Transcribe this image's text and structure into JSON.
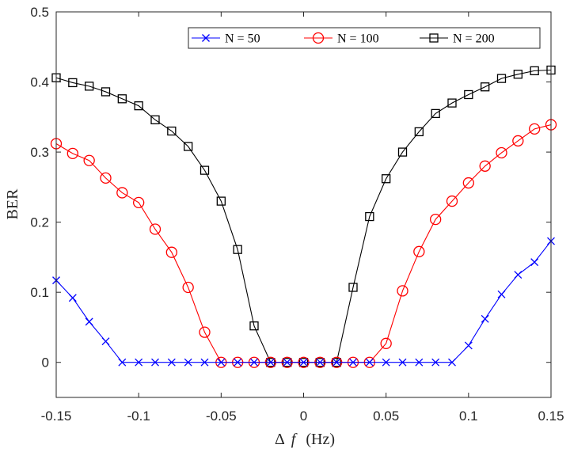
{
  "chart_data": {
    "type": "line",
    "title": "",
    "xlabel_symbol": "Δ",
    "xlabel_var": "f",
    "xlabel_unit": "(Hz)",
    "ylabel": "BER",
    "xlim": [
      -0.15,
      0.15
    ],
    "ylim": [
      -0.05,
      0.5
    ],
    "xticks": [
      -0.15,
      -0.1,
      -0.05,
      0,
      0.05,
      0.1,
      0.15
    ],
    "xtick_labels": [
      "-0.15",
      "-0.1",
      "-0.05",
      "0",
      "0.05",
      "0.1",
      "0.15"
    ],
    "yticks": [
      0,
      0.1,
      0.2,
      0.3,
      0.4,
      0.5
    ],
    "ytick_labels": [
      "0",
      "0.1",
      "0.2",
      "0.3",
      "0.4",
      "0.5"
    ],
    "grid": false,
    "legend_position": "top-right",
    "x": [
      -0.15,
      -0.14,
      -0.13,
      -0.12,
      -0.11,
      -0.1,
      -0.09,
      -0.08,
      -0.07,
      -0.06,
      -0.05,
      -0.04,
      -0.03,
      -0.02,
      -0.01,
      0,
      0.01,
      0.02,
      0.03,
      0.04,
      0.05,
      0.06,
      0.07,
      0.08,
      0.09,
      0.1,
      0.11,
      0.12,
      0.13,
      0.14,
      0.15
    ],
    "series": [
      {
        "name": "N = 50",
        "color": "#0000ff",
        "marker": "x",
        "values": [
          0.117,
          0.092,
          0.058,
          0.03,
          0,
          0,
          0,
          0,
          0,
          0,
          0,
          0,
          0,
          0,
          0,
          0,
          0,
          0,
          0,
          0,
          0,
          0,
          0,
          0,
          0,
          0.024,
          0.062,
          0.097,
          0.125,
          0.143,
          0.173
        ]
      },
      {
        "name": "N = 100",
        "color": "#ff0000",
        "marker": "o",
        "values": [
          0.312,
          0.298,
          0.288,
          0.263,
          0.242,
          0.228,
          0.19,
          0.157,
          0.107,
          0.043,
          0,
          0,
          0,
          0,
          0,
          0,
          0,
          0,
          0,
          0,
          0.027,
          0.102,
          0.158,
          0.204,
          0.23,
          0.256,
          0.28,
          0.299,
          0.316,
          0.333,
          0.339
        ]
      },
      {
        "name": "N = 200",
        "color": "#000000",
        "marker": "s",
        "values": [
          0.406,
          0.399,
          0.394,
          0.386,
          0.376,
          0.366,
          0.346,
          0.33,
          0.308,
          0.274,
          0.23,
          0.161,
          0.052,
          0,
          0,
          0,
          0,
          0,
          0.107,
          0.208,
          0.262,
          0.3,
          0.329,
          0.355,
          0.37,
          0.382,
          0.393,
          0.405,
          0.411,
          0.416,
          0.417
        ]
      }
    ]
  }
}
